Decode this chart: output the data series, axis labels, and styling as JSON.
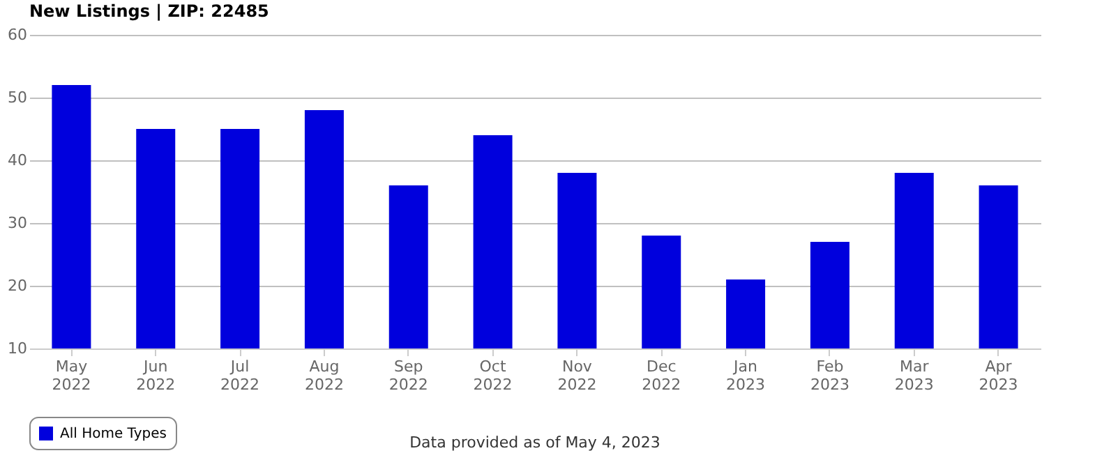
{
  "chart_data": {
    "type": "bar",
    "title": "New Listings | ZIP: 22485",
    "categories": [
      "May 2022",
      "Jun 2022",
      "Jul 2022",
      "Aug 2022",
      "Sep 2022",
      "Oct 2022",
      "Nov 2022",
      "Dec 2022",
      "Jan 2023",
      "Feb 2023",
      "Mar 2023",
      "Apr 2023"
    ],
    "series": [
      {
        "name": "All Home Types",
        "color": "#0000dd",
        "values": [
          52,
          45,
          45,
          48,
          36,
          44,
          38,
          28,
          21,
          27,
          38,
          36
        ]
      }
    ],
    "ylim": [
      10,
      60
    ],
    "yticks": [
      10,
      20,
      30,
      40,
      50,
      60
    ],
    "grid": "y",
    "legend": "bottom",
    "annotations": [
      "Data provided as of May 4, 2023"
    ]
  }
}
